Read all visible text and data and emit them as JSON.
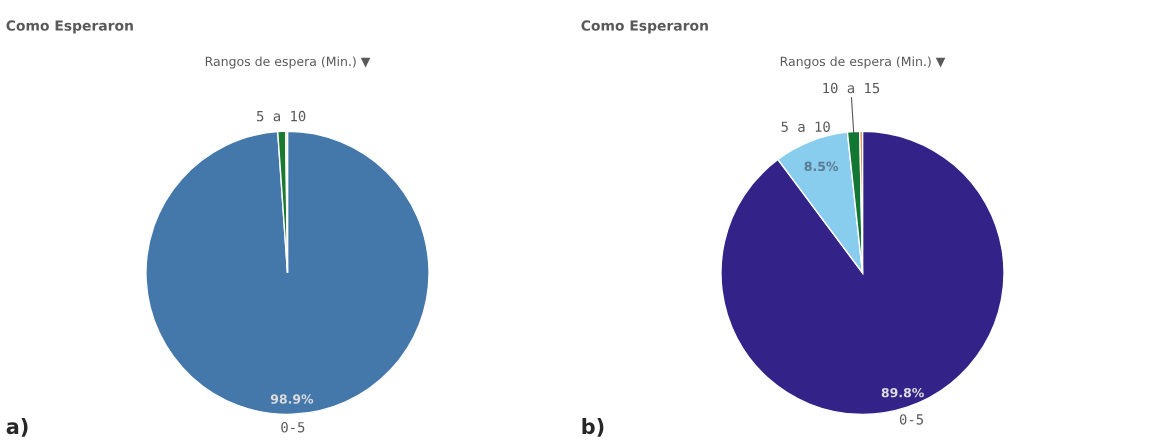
{
  "chart_data": [
    {
      "type": "pie",
      "title": "Como Esperaron",
      "subtitle": "Rangos de espera (Min.) ▼",
      "categories": [
        "0-5",
        "5 a 10",
        null
      ],
      "values": [
        98.9,
        0.9,
        0.2
      ],
      "colors": [
        "#4477aa",
        "#1a7a30",
        "#d8c89a"
      ],
      "value_labels": [
        "98.9%",
        null,
        null
      ],
      "annotations": [
        "a)"
      ],
      "legend": false
    },
    {
      "type": "pie",
      "title": "Como Esperaron",
      "subtitle": "Rangos de espera (Min.) ▼",
      "categories": [
        "0-5",
        "5 a 10",
        "10 a 15",
        null
      ],
      "values": [
        89.8,
        8.5,
        1.4,
        0.3
      ],
      "colors": [
        "#332288",
        "#88ccee",
        "#117733",
        "#dd7733"
      ],
      "value_labels": [
        "89.8%",
        "8.5%",
        null,
        null
      ],
      "annotations": [
        "b)"
      ],
      "legend": false
    }
  ]
}
